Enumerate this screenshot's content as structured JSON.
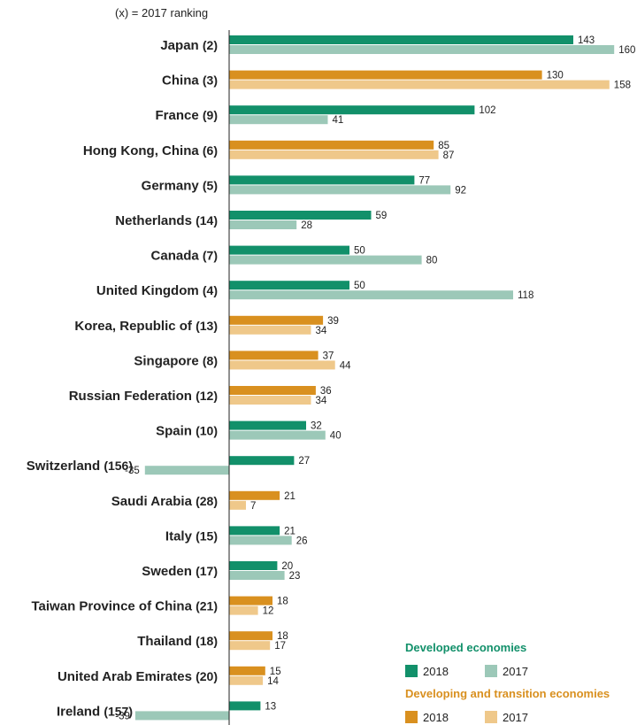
{
  "chart_data": {
    "type": "bar",
    "orientation": "horizontal",
    "title": "",
    "note": "(x) = 2017 ranking",
    "xlabel": "",
    "ylabel": "",
    "categories": [
      {
        "name": "Japan",
        "rank": "(2)",
        "group": "developed"
      },
      {
        "name": "China",
        "rank": "(3)",
        "group": "developing"
      },
      {
        "name": "France",
        "rank": "(9)",
        "group": "developed"
      },
      {
        "name": "Hong Kong, China",
        "rank": "(6)",
        "group": "developing"
      },
      {
        "name": "Germany",
        "rank": "(5)",
        "group": "developed"
      },
      {
        "name": "Netherlands",
        "rank": "(14)",
        "group": "developed"
      },
      {
        "name": "Canada",
        "rank": "(7)",
        "group": "developed"
      },
      {
        "name": "United Kingdom",
        "rank": "(4)",
        "group": "developed"
      },
      {
        "name": "Korea, Republic of",
        "rank": "(13)",
        "group": "developing"
      },
      {
        "name": "Singapore",
        "rank": "(8)",
        "group": "developing"
      },
      {
        "name": "Russian Federation",
        "rank": "(12)",
        "group": "developing"
      },
      {
        "name": "Spain",
        "rank": "(10)",
        "group": "developed"
      },
      {
        "name": "Switzerland",
        "rank": "(156)",
        "group": "developed"
      },
      {
        "name": "Saudi Arabia",
        "rank": "(28)",
        "group": "developing"
      },
      {
        "name": "Italy",
        "rank": "(15)",
        "group": "developed"
      },
      {
        "name": "Sweden",
        "rank": "(17)",
        "group": "developed"
      },
      {
        "name": "Taiwan Province of China",
        "rank": "(21)",
        "group": "developing"
      },
      {
        "name": "Thailand",
        "rank": "(18)",
        "group": "developing"
      },
      {
        "name": "United Arab Emirates",
        "rank": "(20)",
        "group": "developing"
      },
      {
        "name": "Ireland",
        "rank": "(157)",
        "group": "developed"
      }
    ],
    "series": [
      {
        "name": "2018",
        "values": [
          143,
          130,
          102,
          85,
          77,
          59,
          50,
          50,
          39,
          37,
          36,
          32,
          27,
          21,
          21,
          20,
          18,
          18,
          15,
          13
        ]
      },
      {
        "name": "2017",
        "values": [
          160,
          158,
          41,
          87,
          92,
          28,
          80,
          118,
          34,
          44,
          34,
          40,
          -35,
          7,
          26,
          23,
          12,
          17,
          14,
          -39
        ]
      }
    ],
    "xlim": [
      -40,
      160
    ],
    "grid": false,
    "legend": {
      "placement": "bottom-right",
      "groups": [
        {
          "title": "Developed economies",
          "title_color": "#12906a",
          "items": [
            {
              "label": "2018",
              "color": "#12906a"
            },
            {
              "label": "2017",
              "color": "#9cc8b8"
            }
          ]
        },
        {
          "title": "Developing and  transition economies",
          "title_color": "#d9901f",
          "items": [
            {
              "label": "2018",
              "color": "#d9901f"
            },
            {
              "label": "2017",
              "color": "#efc88a"
            }
          ]
        }
      ]
    },
    "colors": {
      "developed_2018": "#12906a",
      "developed_2017": "#9cc8b8",
      "developing_2018": "#d9901f",
      "developing_2017": "#efc88a",
      "axis": "#222222"
    }
  }
}
